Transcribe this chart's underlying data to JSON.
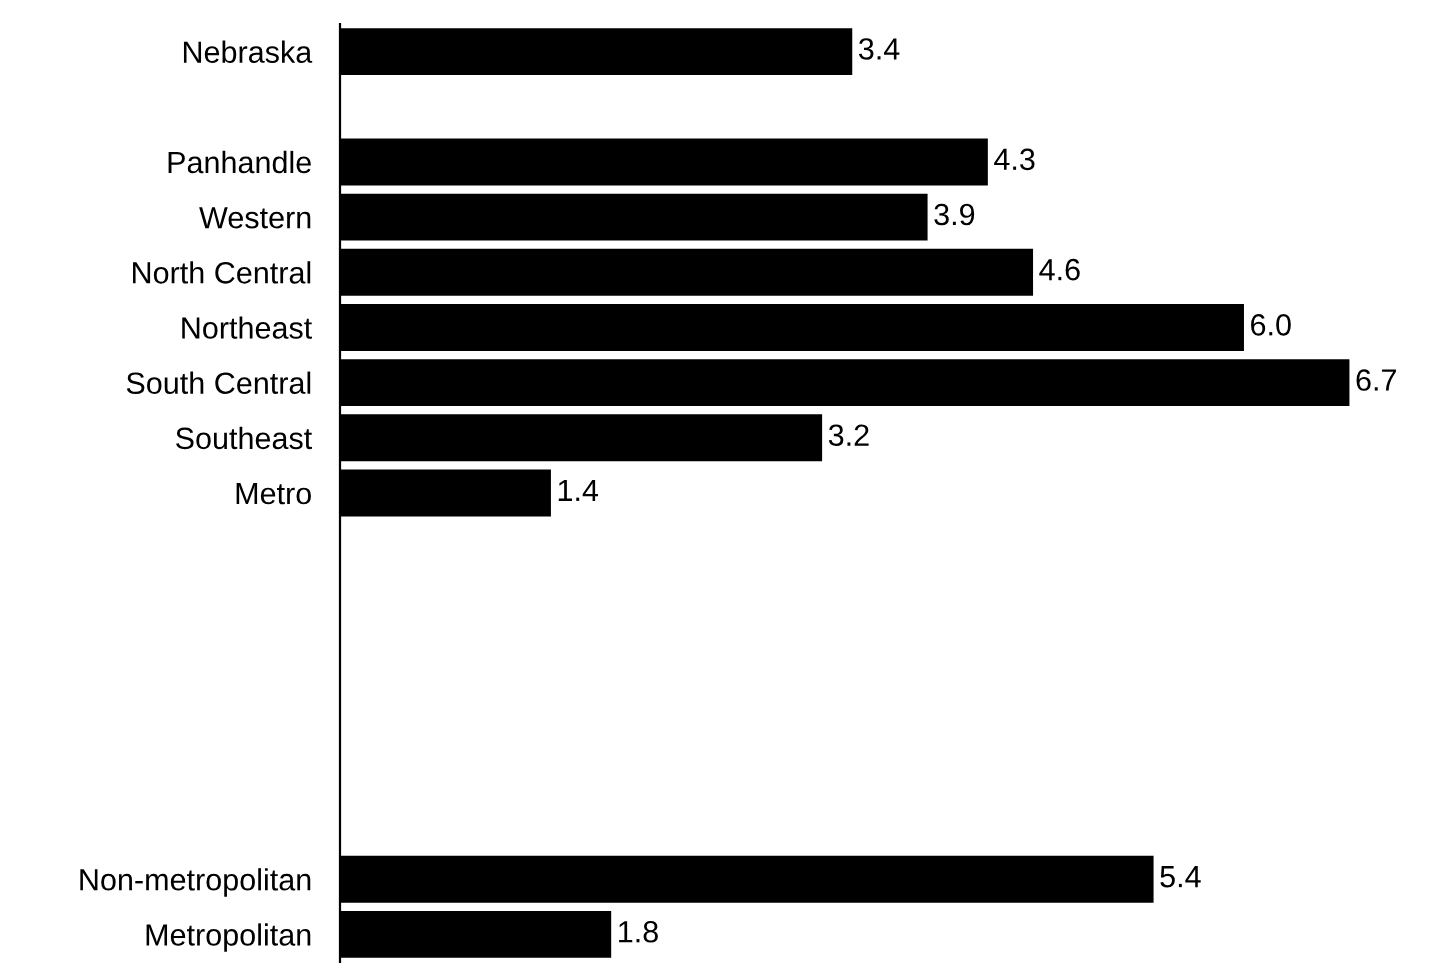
{
  "chart_data": {
    "type": "bar",
    "orientation": "horizontal",
    "categories": [
      "Nebraska",
      null,
      "Panhandle",
      "Western",
      "North Central",
      "Northeast",
      "South Central",
      "Southeast",
      "Metro",
      null,
      null,
      null,
      null,
      null,
      null,
      "Non-metropolitan",
      "Metropolitan"
    ],
    "values": [
      3.4,
      null,
      4.3,
      3.9,
      4.6,
      6.0,
      6.7,
      3.2,
      1.4,
      null,
      null,
      null,
      null,
      null,
      null,
      5.4,
      1.8
    ],
    "value_labels": [
      "3.4",
      null,
      "4.3",
      "3.9",
      "4.6",
      "6.0",
      "6.7",
      "3.2",
      "1.4",
      null,
      null,
      null,
      null,
      null,
      null,
      "5.4",
      "1.8"
    ],
    "color": "#000000",
    "tick_labels": "y",
    "grid": false,
    "legend": false
  }
}
